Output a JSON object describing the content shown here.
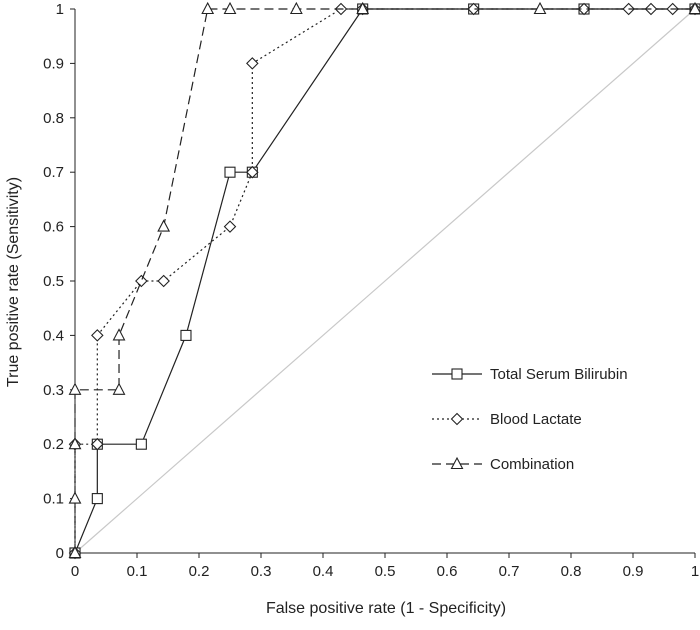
{
  "chart_data": {
    "type": "line",
    "title": "",
    "xlabel": "False positive rate (1 - Specificity)",
    "ylabel": "True positive rate (Sensitivity)",
    "xlim": [
      0,
      1
    ],
    "ylim": [
      0,
      1
    ],
    "x_ticks": [
      0,
      0.1,
      0.2,
      0.3,
      0.4,
      0.5,
      0.6,
      0.7,
      0.8,
      0.9,
      1
    ],
    "x_tick_labels": [
      "0",
      "0.1",
      "0.2",
      "0.3",
      "0.4",
      "0.5",
      "0.6",
      "0.7",
      "0.8",
      "0.9",
      "1"
    ],
    "y_ticks": [
      0,
      0.1,
      0.2,
      0.3,
      0.4,
      0.5,
      0.6,
      0.7,
      0.8,
      0.9,
      1
    ],
    "y_tick_labels": [
      "0",
      "0.1",
      "0.2",
      "0.3",
      "0.4",
      "0.5",
      "0.6",
      "0.7",
      "0.8",
      "0.9",
      "1"
    ],
    "grid": false,
    "legend_position": "right",
    "reference_line": {
      "x": [
        0,
        1
      ],
      "y": [
        0,
        1
      ],
      "color": "#c8c8c8"
    },
    "series": [
      {
        "name": "Total Serum Bilirubin",
        "marker": "square",
        "dash": "solid",
        "color": "#222222",
        "x": [
          0,
          0,
          0.036,
          0.036,
          0.107,
          0.179,
          0.25,
          0.286,
          0.464,
          0.643,
          0.821,
          1
        ],
        "y": [
          0,
          0,
          0.1,
          0.2,
          0.2,
          0.4,
          0.7,
          0.7,
          1,
          1,
          1,
          1
        ]
      },
      {
        "name": "Blood Lactate",
        "marker": "diamond",
        "dash": "dotted",
        "color": "#222222",
        "x": [
          0,
          0,
          0.036,
          0.036,
          0.107,
          0.143,
          0.25,
          0.286,
          0.286,
          0.429,
          0.464,
          0.643,
          0.821,
          0.893,
          0.929,
          0.964,
          1
        ],
        "y": [
          0,
          0.2,
          0.2,
          0.4,
          0.5,
          0.5,
          0.6,
          0.7,
          0.9,
          1,
          1,
          1,
          1,
          1,
          1,
          1,
          1
        ]
      },
      {
        "name": "Combination",
        "marker": "triangle",
        "dash": "dashed",
        "color": "#222222",
        "x": [
          0,
          0,
          0,
          0,
          0.071,
          0.071,
          0.143,
          0.214,
          0.25,
          0.357,
          0.464,
          0.75,
          1
        ],
        "y": [
          0,
          0.1,
          0.2,
          0.3,
          0.3,
          0.4,
          0.6,
          1,
          1,
          1,
          1,
          1,
          1
        ]
      }
    ]
  }
}
